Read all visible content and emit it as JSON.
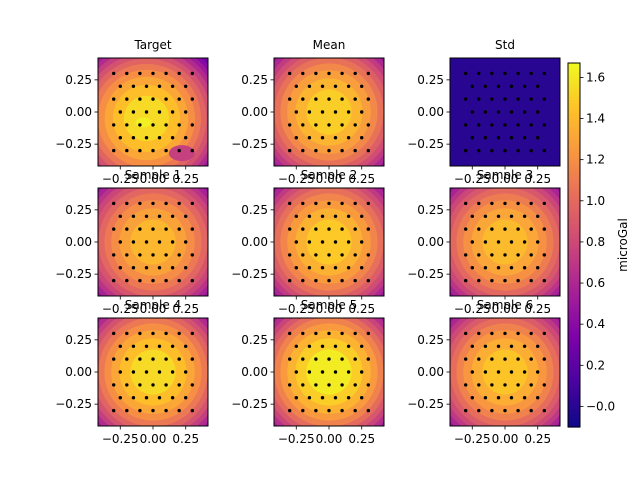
{
  "chart_data": {
    "type": "heatmap",
    "colormap": "plasma",
    "panels": [
      {
        "title": "Target",
        "peak": 1.55,
        "peak_x": -0.05,
        "peak_y": -0.05,
        "variant": "target"
      },
      {
        "title": "Mean",
        "peak": 1.5,
        "peak_x": 0.0,
        "peak_y": 0.0,
        "variant": "smooth"
      },
      {
        "title": "Std",
        "peak": 0.0,
        "peak_x": 0.0,
        "peak_y": 0.0,
        "variant": "std"
      },
      {
        "title": "Sample 1",
        "peak": 1.4,
        "peak_x": 0.0,
        "peak_y": 0.0,
        "variant": "smooth"
      },
      {
        "title": "Sample 2",
        "peak": 1.48,
        "peak_x": 0.0,
        "peak_y": 0.0,
        "variant": "smooth"
      },
      {
        "title": "Sample 3",
        "peak": 1.42,
        "peak_x": 0.0,
        "peak_y": 0.0,
        "variant": "smooth"
      },
      {
        "title": "Sample 4",
        "peak": 1.55,
        "peak_x": 0.0,
        "peak_y": 0.0,
        "variant": "smooth"
      },
      {
        "title": "Sample 5",
        "peak": 1.62,
        "peak_x": 0.0,
        "peak_y": 0.0,
        "variant": "smooth"
      },
      {
        "title": "Sample 6",
        "peak": 1.46,
        "peak_x": 0.0,
        "peak_y": 0.0,
        "variant": "smooth"
      }
    ],
    "xlim": [
      -0.42,
      0.42
    ],
    "ylim": [
      -0.42,
      0.42
    ],
    "x_ticks": [
      -0.25,
      0.0,
      0.25
    ],
    "x_tick_labels": [
      "−0.25",
      "0.00",
      "0.25"
    ],
    "y_ticks": [
      0.25,
      0.0,
      -0.25
    ],
    "y_tick_labels": [
      "0.25",
      "0.00",
      "−0.25"
    ],
    "station_grid": [
      -0.3,
      -0.2,
      -0.1,
      0.0,
      0.1,
      0.2,
      0.3
    ],
    "colorbar": {
      "label": "microGal",
      "vmin": -0.1,
      "vmax": 1.67,
      "ticks": [
        -0.0,
        0.2,
        0.4,
        0.6,
        0.8,
        1.0,
        1.2,
        1.4,
        1.6
      ],
      "tick_labels": [
        "−0.0",
        "0.2",
        "0.4",
        "0.6",
        "0.8",
        "1.0",
        "1.2",
        "1.4",
        "1.6"
      ]
    },
    "grid": false
  }
}
